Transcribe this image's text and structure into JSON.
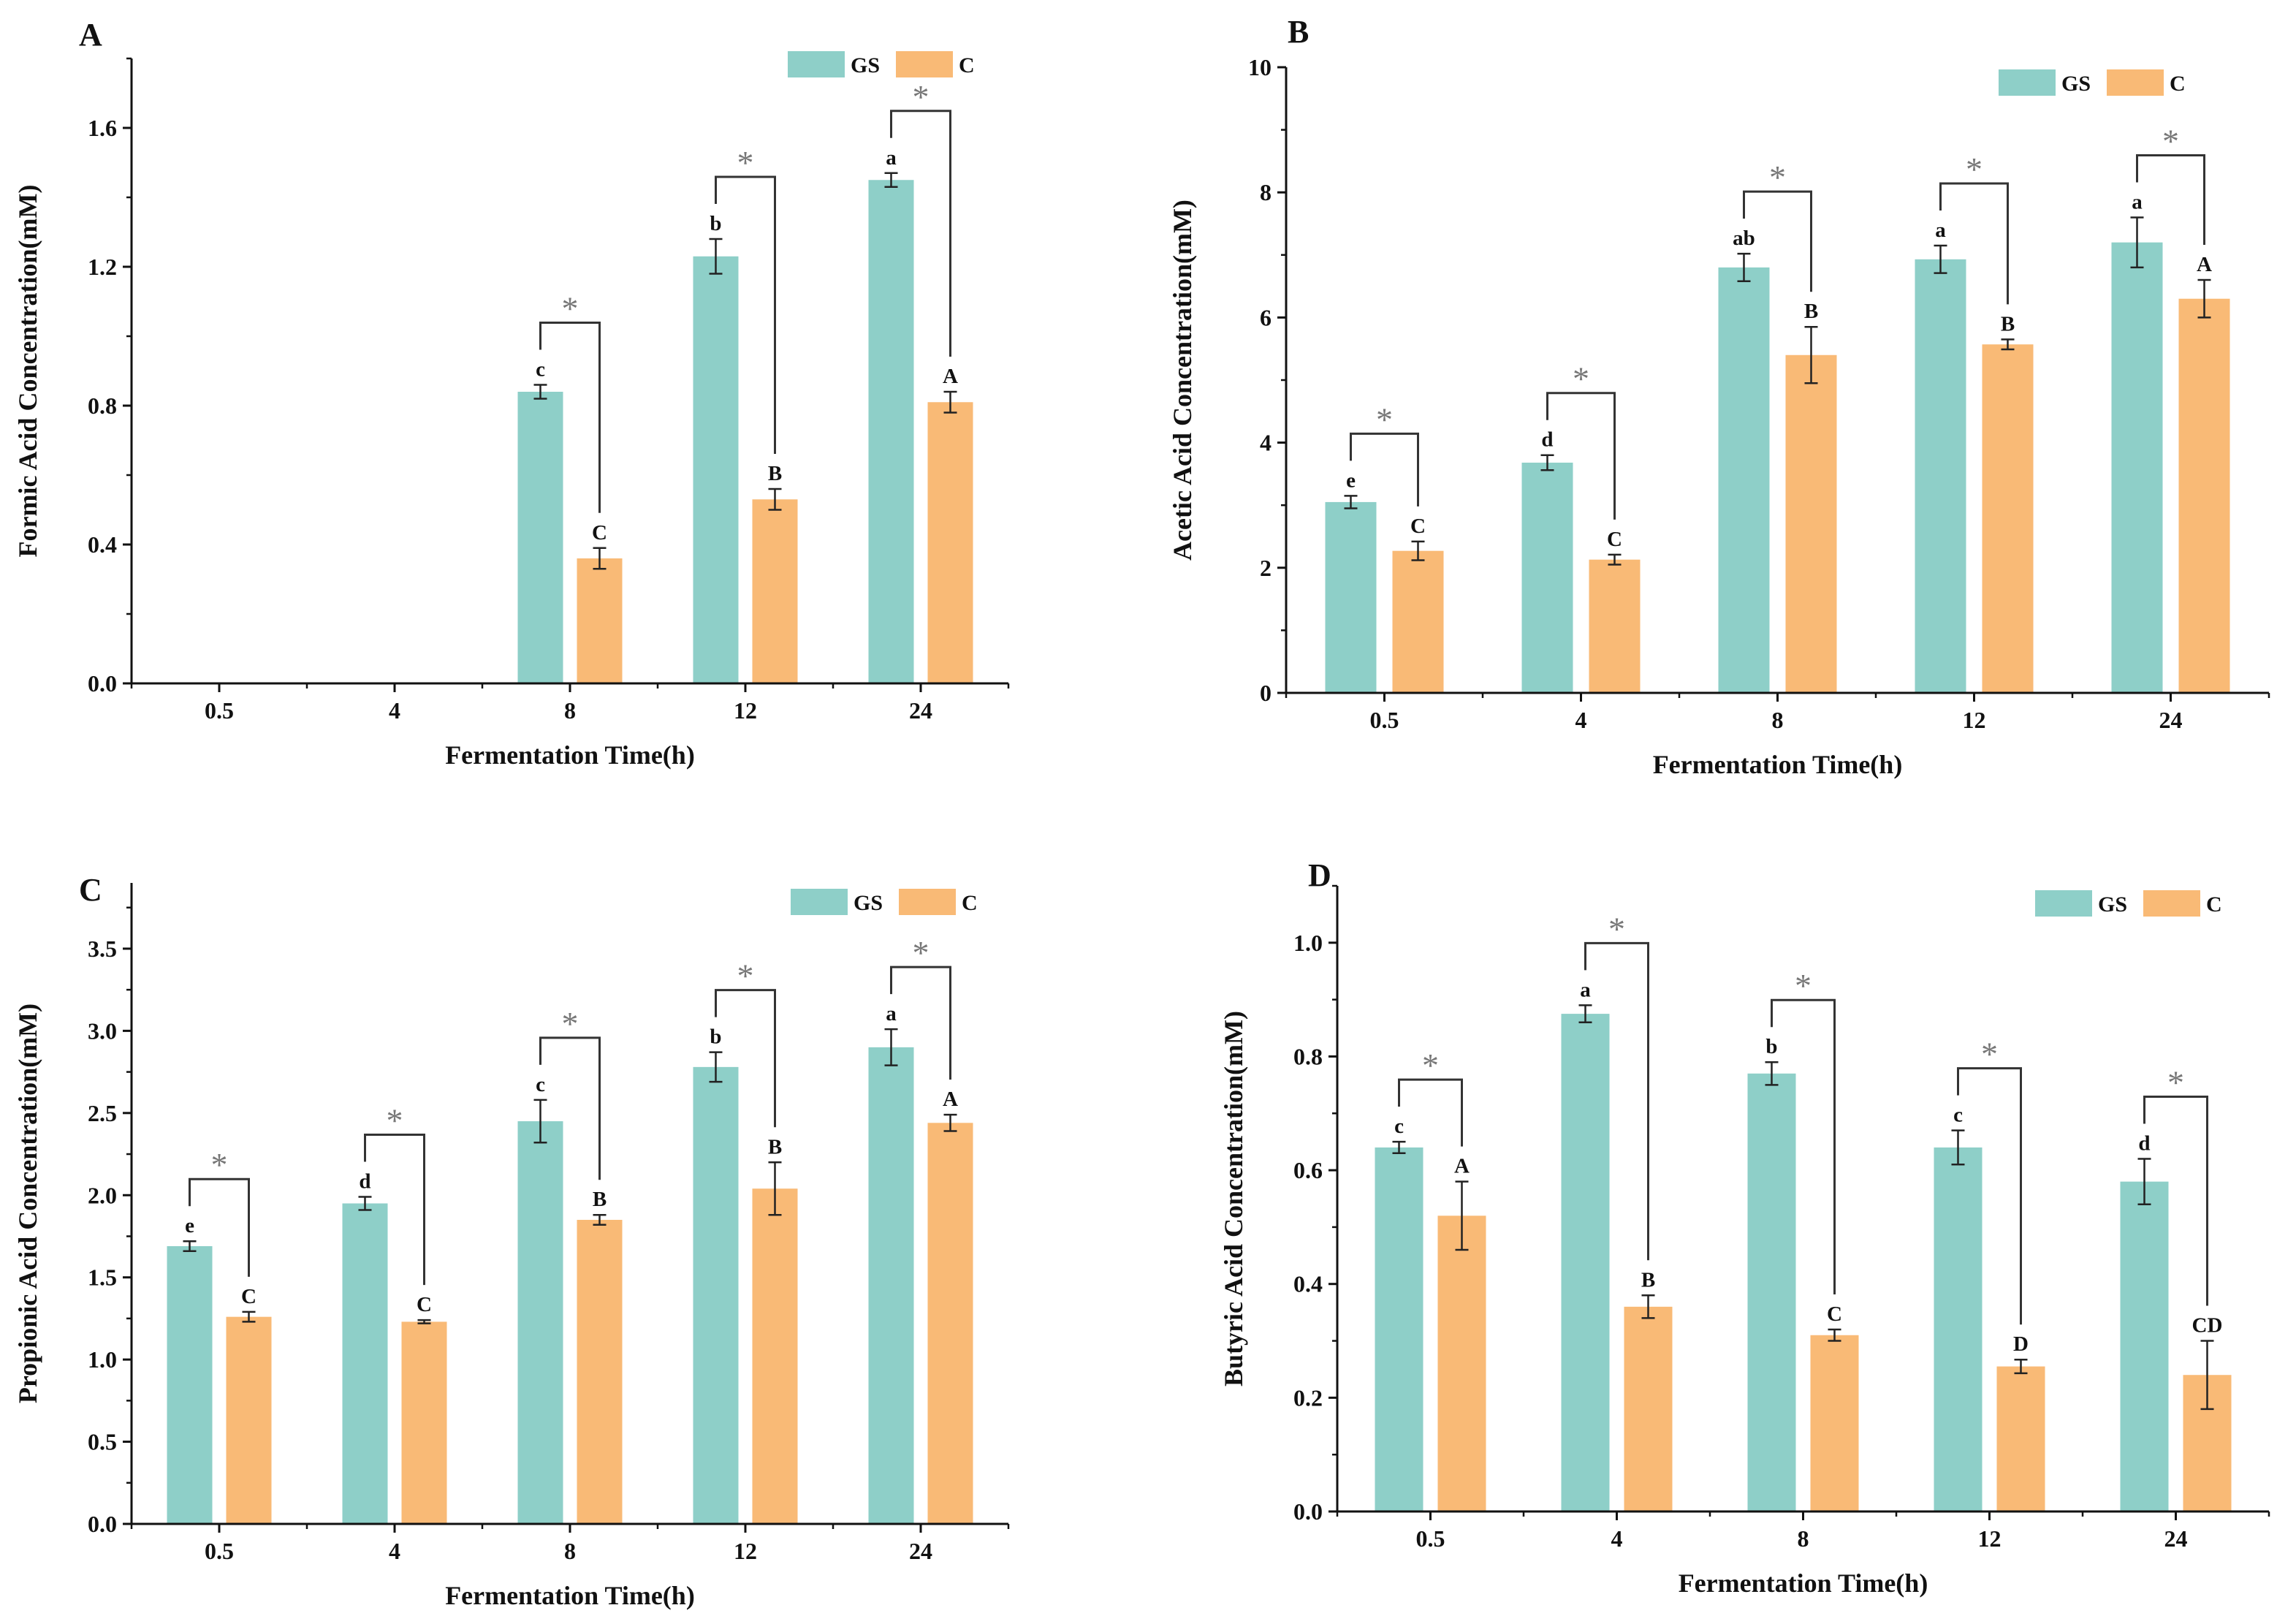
{
  "colors": {
    "GS": "#8ecfc8",
    "C": "#f9ba76",
    "axis": "#111111",
    "bracket": "#333333",
    "star": "#777777"
  },
  "chart_data": [
    {
      "type": "bar",
      "panel": "A",
      "categories": [
        "0.5",
        "4",
        "8",
        "12",
        "24"
      ],
      "xlabel": "Fermentation Time(h)",
      "ylabel": "Formic Acid Concentration(mM)",
      "ylim": [
        0,
        1.8
      ],
      "yticks": [
        "0.0",
        "0.4",
        "0.8",
        "1.2",
        "1.6"
      ],
      "legend": [
        "GS",
        "C"
      ],
      "series": [
        {
          "name": "GS",
          "values": [
            null,
            null,
            0.84,
            1.23,
            1.45
          ],
          "errors": [
            null,
            null,
            0.02,
            0.05,
            0.02
          ],
          "labels": [
            "",
            "",
            "c",
            "b",
            "a"
          ]
        },
        {
          "name": "C",
          "values": [
            null,
            null,
            0.36,
            0.53,
            0.81
          ],
          "errors": [
            null,
            null,
            0.03,
            0.03,
            0.03
          ],
          "labels": [
            "",
            "",
            "C",
            "B",
            "A"
          ]
        }
      ],
      "significance": [
        "",
        "",
        "*",
        "*",
        "*"
      ]
    },
    {
      "type": "bar",
      "panel": "B",
      "categories": [
        "0.5",
        "4",
        "8",
        "12",
        "24"
      ],
      "xlabel": "Fermentation Time(h)",
      "ylabel": "Acetic Acid Concentration(mM)",
      "ylim": [
        0,
        10
      ],
      "yticks": [
        "0",
        "2",
        "4",
        "6",
        "8",
        "10"
      ],
      "legend": [
        "GS",
        "C"
      ],
      "series": [
        {
          "name": "GS",
          "values": [
            3.05,
            3.68,
            6.8,
            6.93,
            7.2
          ],
          "errors": [
            0.1,
            0.12,
            0.22,
            0.22,
            0.4
          ],
          "labels": [
            "e",
            "d",
            "ab",
            "a",
            "a"
          ]
        },
        {
          "name": "C",
          "values": [
            2.27,
            2.13,
            5.4,
            5.57,
            6.3
          ],
          "errors": [
            0.15,
            0.08,
            0.45,
            0.08,
            0.3
          ],
          "labels": [
            "C",
            "C",
            "B",
            "B",
            "A"
          ]
        }
      ],
      "significance": [
        "*",
        "*",
        "*",
        "*",
        "*"
      ]
    },
    {
      "type": "bar",
      "panel": "C",
      "categories": [
        "0.5",
        "4",
        "8",
        "12",
        "24"
      ],
      "xlabel": "Fermentation Time(h)",
      "ylabel": "Propionic Acid Concentration(mM)",
      "ylim": [
        0,
        3.9
      ],
      "yticks": [
        "0.0",
        "0.5",
        "1.0",
        "1.5",
        "2.0",
        "2.5",
        "3.0",
        "3.5"
      ],
      "legend": [
        "GS",
        "C"
      ],
      "series": [
        {
          "name": "GS",
          "values": [
            1.69,
            1.95,
            2.45,
            2.78,
            2.9
          ],
          "errors": [
            0.03,
            0.04,
            0.13,
            0.09,
            0.11
          ],
          "labels": [
            "e",
            "d",
            "c",
            "b",
            "a"
          ]
        },
        {
          "name": "C",
          "values": [
            1.26,
            1.23,
            1.85,
            2.04,
            2.44
          ],
          "errors": [
            0.03,
            0.01,
            0.03,
            0.16,
            0.05
          ],
          "labels": [
            "C",
            "C",
            "B",
            "B",
            "A"
          ]
        }
      ],
      "significance": [
        "*",
        "*",
        "*",
        "*",
        "*"
      ]
    },
    {
      "type": "bar",
      "panel": "D",
      "categories": [
        "0.5",
        "4",
        "8",
        "12",
        "24"
      ],
      "xlabel": "Fermentation Time(h)",
      "ylabel": "Butyric Acid Concentration(mM)",
      "ylim": [
        0,
        1.1
      ],
      "yticks": [
        "0.0",
        "0.2",
        "0.4",
        "0.6",
        "0.8",
        "1.0"
      ],
      "legend": [
        "GS",
        "C"
      ],
      "series": [
        {
          "name": "GS",
          "values": [
            0.64,
            0.875,
            0.77,
            0.64,
            0.58
          ],
          "errors": [
            0.01,
            0.015,
            0.02,
            0.03,
            0.04
          ],
          "labels": [
            "c",
            "a",
            "b",
            "c",
            "d"
          ]
        },
        {
          "name": "C",
          "values": [
            0.52,
            0.36,
            0.31,
            0.255,
            0.24
          ],
          "errors": [
            0.06,
            0.02,
            0.01,
            0.012,
            0.06
          ],
          "labels": [
            "A",
            "B",
            "C",
            "D",
            "CD"
          ]
        }
      ],
      "significance": [
        "*",
        "*",
        "*",
        "*",
        "*"
      ]
    }
  ]
}
